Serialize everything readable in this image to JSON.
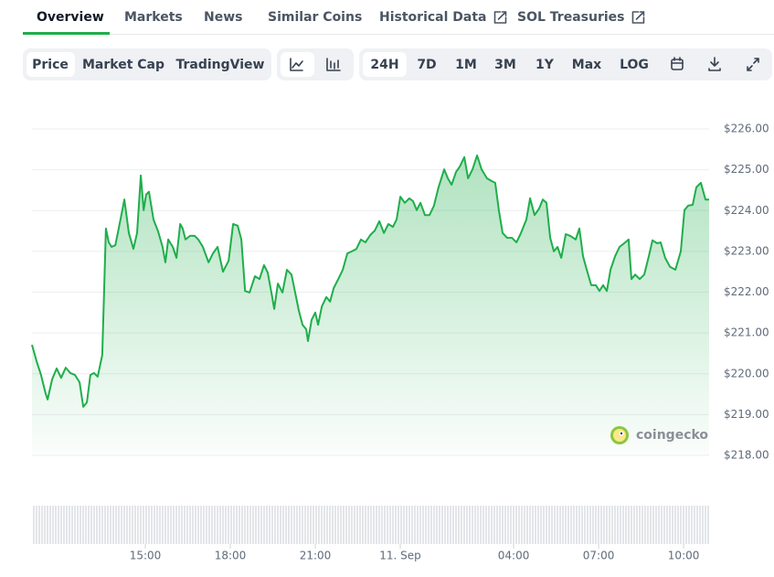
{
  "tabs": [
    "Overview",
    "Markets",
    "News",
    "Similar Coins",
    "Historical Data",
    "SOL Treasuries"
  ],
  "chart_types": [
    "Price",
    "Market Cap",
    "TradingView"
  ],
  "ranges": [
    "24H",
    "7D",
    "1M",
    "3M",
    "1Y",
    "Max",
    "LOG"
  ],
  "watermark": "coingecko",
  "chart_data": {
    "type": "line",
    "color": "#1fae4b",
    "grid": true,
    "x": [
      11.0,
      11.16,
      11.32,
      11.48,
      11.55,
      11.71,
      11.87,
      12.03,
      12.19,
      12.35,
      12.52,
      12.68,
      12.81,
      12.94,
      13.06,
      13.19,
      13.32,
      13.48,
      13.61,
      13.71,
      13.81,
      13.94,
      14.06,
      14.26,
      14.42,
      14.58,
      14.71,
      14.84,
      14.94,
      15.03,
      15.13,
      15.29,
      15.45,
      15.61,
      15.71,
      15.81,
      15.97,
      16.1,
      16.23,
      16.32,
      16.42,
      16.58,
      16.74,
      16.87,
      17.03,
      17.23,
      17.39,
      17.55,
      17.74,
      17.94,
      18.1,
      18.26,
      18.39,
      18.52,
      18.68,
      18.87,
      19.03,
      19.19,
      19.32,
      19.45,
      19.55,
      19.68,
      19.84,
      20.0,
      20.16,
      20.29,
      20.42,
      20.55,
      20.68,
      20.74,
      20.87,
      21.0,
      21.1,
      21.23,
      21.39,
      21.52,
      21.65,
      21.81,
      21.97,
      22.13,
      22.29,
      22.45,
      22.61,
      22.77,
      22.94,
      23.1,
      23.26,
      23.42,
      23.58,
      23.74,
      23.87,
      24.0,
      24.16,
      24.32,
      24.45,
      24.58,
      24.71,
      24.87,
      25.03,
      25.19,
      25.35,
      25.55,
      25.68,
      25.81,
      25.97,
      26.1,
      26.26,
      26.39,
      26.55,
      26.71,
      26.87,
      27.06,
      27.23,
      27.35,
      27.48,
      27.61,
      27.77,
      27.94,
      28.1,
      28.26,
      28.45,
      28.58,
      28.74,
      28.9,
      29.03,
      29.16,
      29.29,
      29.42,
      29.55,
      29.68,
      29.84,
      30.0,
      30.19,
      30.32,
      30.45,
      30.58,
      30.74,
      30.9,
      31.03,
      31.16,
      31.29,
      31.42,
      31.58,
      31.74,
      31.94,
      32.06,
      32.16,
      32.29,
      32.45,
      32.61,
      32.77,
      32.9,
      33.06,
      33.19,
      33.35,
      33.52,
      33.71,
      33.9,
      34.03,
      34.16,
      34.32,
      34.45,
      34.61,
      34.77,
      34.9
    ],
    "values": [
      220.71,
      220.31,
      219.97,
      219.52,
      219.37,
      219.86,
      220.13,
      219.9,
      220.15,
      220.02,
      219.97,
      219.79,
      219.19,
      219.3,
      219.97,
      220.02,
      219.93,
      220.46,
      223.56,
      223.22,
      223.11,
      223.15,
      223.56,
      224.27,
      223.45,
      223.06,
      223.45,
      224.86,
      224.01,
      224.39,
      224.46,
      223.78,
      223.49,
      223.11,
      222.73,
      223.29,
      223.11,
      222.84,
      223.67,
      223.56,
      223.29,
      223.38,
      223.38,
      223.29,
      223.11,
      222.73,
      222.95,
      223.11,
      222.5,
      222.77,
      223.67,
      223.63,
      223.29,
      222.03,
      221.99,
      222.39,
      222.32,
      222.66,
      222.48,
      221.99,
      221.59,
      222.21,
      221.99,
      222.55,
      222.43,
      221.99,
      221.54,
      221.2,
      221.09,
      220.8,
      221.32,
      221.5,
      221.2,
      221.65,
      221.88,
      221.77,
      222.1,
      222.32,
      222.55,
      222.95,
      223.0,
      223.06,
      223.29,
      223.22,
      223.4,
      223.51,
      223.74,
      223.45,
      223.67,
      223.6,
      223.78,
      224.34,
      224.19,
      224.3,
      224.23,
      224.01,
      224.19,
      223.89,
      223.89,
      224.12,
      224.57,
      225.01,
      224.79,
      224.63,
      224.95,
      225.08,
      225.31,
      224.79,
      225.01,
      225.35,
      225.01,
      224.79,
      224.72,
      224.68,
      224.01,
      223.45,
      223.33,
      223.33,
      223.22,
      223.45,
      223.78,
      224.3,
      223.89,
      224.05,
      224.27,
      224.19,
      223.33,
      223.0,
      223.11,
      222.84,
      223.42,
      223.38,
      223.29,
      223.56,
      222.88,
      222.55,
      222.17,
      222.17,
      222.03,
      222.17,
      222.03,
      222.55,
      222.88,
      223.11,
      223.22,
      223.29,
      222.32,
      222.43,
      222.32,
      222.43,
      222.88,
      223.27,
      223.2,
      223.22,
      222.84,
      222.62,
      222.55,
      223.0,
      224.01,
      224.12,
      224.14,
      224.57,
      224.68,
      224.27,
      224.27
    ],
    "xlim": [
      11,
      34.9
    ],
    "xticks": [
      {
        "value": 15,
        "label": "15:00"
      },
      {
        "value": 18,
        "label": "18:00"
      },
      {
        "value": 21,
        "label": "21:00"
      },
      {
        "value": 24,
        "label": "11. Sep"
      },
      {
        "value": 28,
        "label": "04:00"
      },
      {
        "value": 31,
        "label": "07:00"
      },
      {
        "value": 34,
        "label": "10:00"
      }
    ],
    "ylim": [
      218,
      226
    ],
    "yticks": [
      {
        "value": 218,
        "label": "$218.00"
      },
      {
        "value": 219,
        "label": "$219.00"
      },
      {
        "value": 220,
        "label": "$220.00"
      },
      {
        "value": 221,
        "label": "$221.00"
      },
      {
        "value": 222,
        "label": "$222.00"
      },
      {
        "value": 223,
        "label": "$223.00"
      },
      {
        "value": 224,
        "label": "$224.00"
      },
      {
        "value": 225,
        "label": "$225.00"
      },
      {
        "value": 226,
        "label": "$226.00"
      }
    ]
  }
}
